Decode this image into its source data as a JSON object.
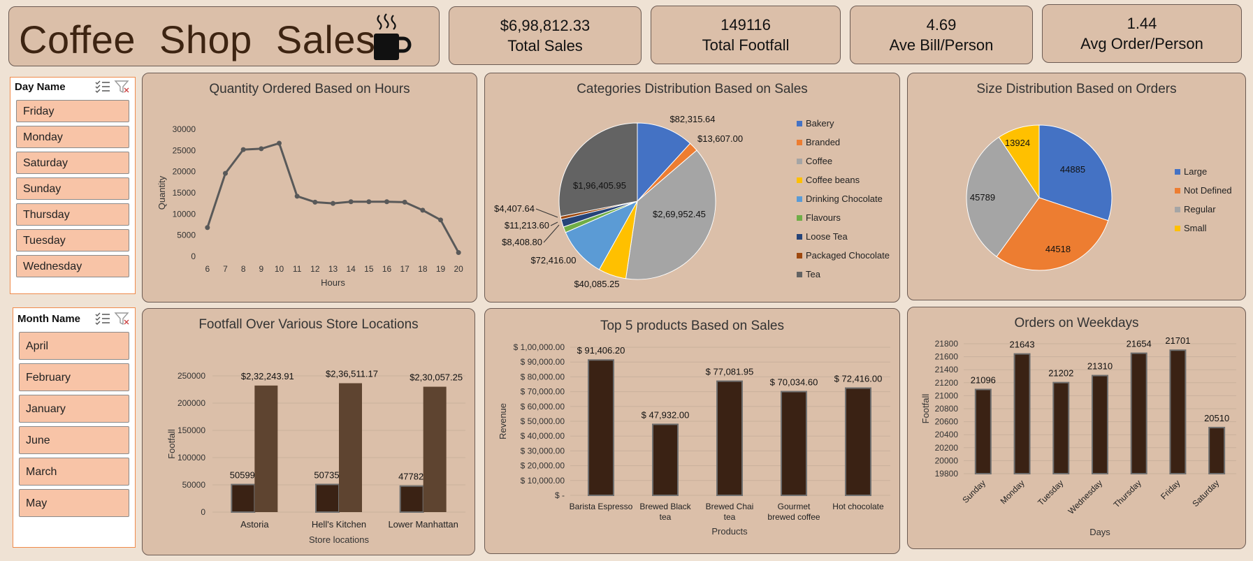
{
  "dashboard": {
    "title": "Coffee Shop Sales",
    "kpis": [
      {
        "value": "$6,98,812.33",
        "label": "Total Sales"
      },
      {
        "value": "149116",
        "label": "Total Footfall"
      },
      {
        "value": "4.69",
        "label": "Ave Bill/Person"
      },
      {
        "value": "1.44",
        "label": "Avg Order/Person"
      }
    ]
  },
  "slicers": {
    "day": {
      "title": "Day Name",
      "items": [
        "Friday",
        "Monday",
        "Saturday",
        "Sunday",
        "Thursday",
        "Tuesday",
        "Wednesday"
      ]
    },
    "month": {
      "title": "Month Name",
      "items": [
        "April",
        "February",
        "January",
        "June",
        "March",
        "May"
      ]
    }
  },
  "colors": {
    "panel": "#dbbfa9",
    "dark_bar": "#3a2214",
    "mid_bar": "#5e4430",
    "line": "#595959",
    "slicer_item": "#f8c4a7",
    "slicer_border": "#f08a4b"
  },
  "chart_data": [
    {
      "id": "hours",
      "type": "line",
      "title": "Quantity Ordered Based on Hours",
      "xlabel": "Hours",
      "ylabel": "Quantity",
      "x": [
        6,
        7,
        8,
        9,
        10,
        11,
        12,
        13,
        14,
        15,
        16,
        17,
        18,
        19,
        20
      ],
      "values": [
        6800,
        19600,
        25200,
        25400,
        26700,
        14200,
        12800,
        12500,
        12900,
        12900,
        12900,
        12800,
        10900,
        8600,
        900
      ],
      "yticks": [
        "0",
        "5000",
        "10000",
        "15000",
        "20000",
        "25000",
        "30000"
      ],
      "ylim": [
        0,
        30000
      ]
    },
    {
      "id": "categories",
      "type": "pie",
      "title": "Categories Distribution Based on Sales",
      "labels": [
        "Bakery",
        "Branded",
        "Coffee",
        "Coffee beans",
        "Drinking Chocolate",
        "Flavours",
        "Loose Tea",
        "Packaged Chocolate",
        "Tea"
      ],
      "values": [
        82315.64,
        13607.0,
        269952.45,
        40085.25,
        72416.0,
        8408.8,
        11213.6,
        4407.64,
        196405.95
      ],
      "display": [
        "$82,315.64",
        "$13,607.00",
        "$2,69,952.45",
        "$40,085.25",
        "$72,416.00",
        "$8,408.80",
        "$11,213.60",
        "$4,407.64",
        "$1,96,405.95"
      ],
      "colors": [
        "#4472c4",
        "#ed7d31",
        "#a5a5a5",
        "#ffc000",
        "#5b9bd5",
        "#70ad47",
        "#264478",
        "#9e480e",
        "#636363"
      ]
    },
    {
      "id": "sizes",
      "type": "pie",
      "title": "Size Distribution Based on Orders",
      "labels": [
        "Large",
        "Not Defined",
        "Regular",
        "Small"
      ],
      "values": [
        44885,
        44518,
        45789,
        13924
      ],
      "display": [
        "44885",
        "44518",
        "45789",
        "13924"
      ],
      "colors": [
        "#4472c4",
        "#ed7d31",
        "#a5a5a5",
        "#ffc000"
      ]
    },
    {
      "id": "stores",
      "type": "bar",
      "title": "Footfall Over Various Store Locations",
      "xlabel": "Store locations",
      "ylabel": "Footfall",
      "categories": [
        "Astoria",
        "Hell's Kitchen",
        "Lower Manhattan"
      ],
      "series": [
        {
          "values": [
            50599,
            50735,
            47782
          ],
          "display": [
            "50599",
            "50735",
            "47782"
          ]
        },
        {
          "values": [
            232243.91,
            236511.17,
            230057.25
          ],
          "display": [
            "$2,32,243.91",
            "$2,36,511.17",
            "$2,30,057.25"
          ]
        }
      ],
      "yticks": [
        "0",
        "50000",
        "100000",
        "150000",
        "200000",
        "250000"
      ],
      "ylim": [
        0,
        250000
      ]
    },
    {
      "id": "products",
      "type": "bar",
      "title": "Top 5  products Based on Sales",
      "xlabel": "Products",
      "ylabel": "Revenue",
      "categories": [
        "Barista Espresso",
        "Brewed Black tea",
        "Brewed Chai tea",
        "Gourmet brewed coffee",
        "Hot chocolate"
      ],
      "category_lines": [
        [
          "Barista Espresso"
        ],
        [
          "Brewed Black",
          "tea"
        ],
        [
          "Brewed Chai",
          "tea"
        ],
        [
          "Gourmet",
          "brewed coffee"
        ],
        [
          "Hot chocolate"
        ]
      ],
      "values": [
        91406.2,
        47932.0,
        77081.95,
        70034.6,
        72416.0
      ],
      "display": [
        "$ 91,406.20",
        "$ 47,932.00",
        "$ 77,081.95",
        "$ 70,034.60",
        "$ 72,416.00"
      ],
      "yticks": [
        "$ -",
        "$ 10,000.00",
        "$ 20,000.00",
        "$ 30,000.00",
        "$ 40,000.00",
        "$ 50,000.00",
        "$ 60,000.00",
        "$ 70,000.00",
        "$ 80,000.00",
        "$ 90,000.00",
        "$ 1,00,000.00"
      ],
      "ylim": [
        0,
        100000
      ]
    },
    {
      "id": "weekdays",
      "type": "bar",
      "title": "Orders on Weekdays",
      "xlabel": "Days",
      "ylabel": "Footfall",
      "categories": [
        "Sunday",
        "Monday",
        "Tuesday",
        "Wednesday",
        "Thursday",
        "Friday",
        "Saturday"
      ],
      "values": [
        21096,
        21643,
        21202,
        21310,
        21654,
        21701,
        20510
      ],
      "display": [
        "21096",
        "21643",
        "21202",
        "21310",
        "21654",
        "21701",
        "20510"
      ],
      "yticks": [
        "19800",
        "20000",
        "20200",
        "20400",
        "20600",
        "20800",
        "21000",
        "21200",
        "21400",
        "21600",
        "21800"
      ],
      "ylim": [
        19800,
        21800
      ]
    }
  ]
}
